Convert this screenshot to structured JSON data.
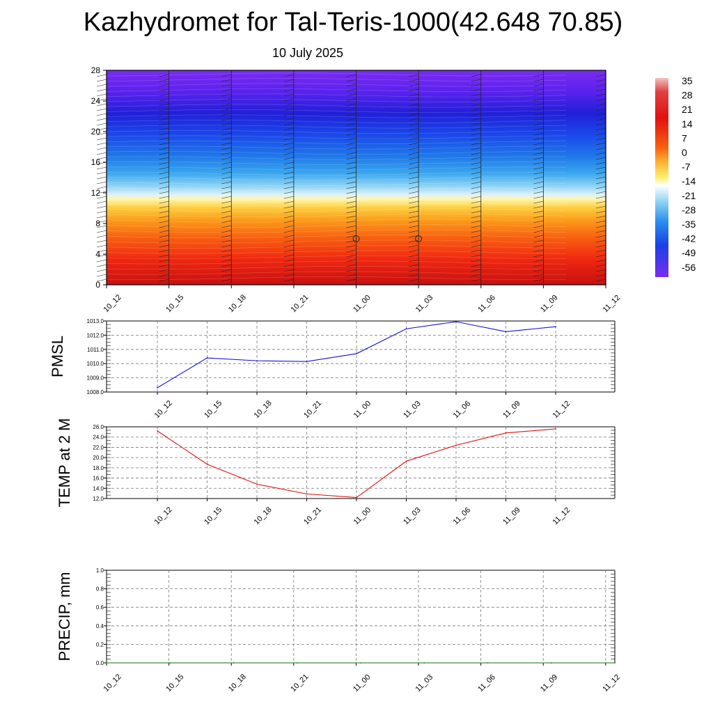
{
  "title": "Kazhydromet for Tal-Teris-1000(42.648 70.85)",
  "subtitle": "10 July 2025",
  "colors": {
    "pmsl_line": "#1010e0",
    "temp_line": "#e01010",
    "precip_line": "#1a6a1a",
    "grid": "#777777"
  },
  "chart_data": [
    {
      "type": "heatmap",
      "name": "cross-section",
      "x_ticks": [
        "10_12",
        "10_15",
        "10_18",
        "10_21",
        "11_00",
        "11_03",
        "11_06",
        "11_09",
        "11_12"
      ],
      "y_ticks": [
        "0",
        "4",
        "8",
        "12",
        "16",
        "20",
        "24",
        "28"
      ],
      "ylim": [
        0,
        28
      ],
      "colorbar": {
        "labels": [
          "35",
          "28",
          "21",
          "14",
          "7",
          "0",
          "-7",
          "-14",
          "-21",
          "-28",
          "-35",
          "-42",
          "-49",
          "-56"
        ],
        "range": [
          -60,
          38
        ]
      },
      "calm_markers": [
        {
          "x": "11_00",
          "y": 6
        },
        {
          "x": "11_03",
          "y": 6
        }
      ]
    },
    {
      "type": "line",
      "name": "pmsl",
      "ylabel": "PMSL",
      "y_ticks": [
        "1008.0",
        "1009.0",
        "1010.0",
        "1011.0",
        "1012.0",
        "1013.0"
      ],
      "ylim": [
        1008.0,
        1013.0
      ],
      "categories": [
        "10_12",
        "10_15",
        "10_18",
        "10_21",
        "11_00",
        "11_03",
        "11_06",
        "11_09",
        "11_12"
      ],
      "series": [
        {
          "values": [
            1008.3,
            1010.4,
            1010.2,
            1010.15,
            1010.7,
            1012.45,
            1012.95,
            1012.25,
            1012.6
          ]
        }
      ]
    },
    {
      "type": "line",
      "name": "temp",
      "ylabel": "TEMP at 2 M",
      "y_ticks": [
        "12.0",
        "14.0",
        "16.0",
        "18.0",
        "20.0",
        "22.0",
        "24.0",
        "26.0"
      ],
      "ylim": [
        12.0,
        26.0
      ],
      "categories": [
        "10_12",
        "10_15",
        "10_18",
        "10_21",
        "11_00",
        "11_03",
        "11_06",
        "11_09",
        "11_12"
      ],
      "series": [
        {
          "values": [
            25.2,
            18.7,
            14.8,
            12.9,
            12.2,
            19.3,
            22.4,
            24.8,
            25.6
          ]
        }
      ]
    },
    {
      "type": "line",
      "name": "precip",
      "ylabel": "PRECIP, mm",
      "y_ticks": [
        "0.0",
        "0.2",
        "0.4",
        "0.6",
        "0.8",
        "1.0"
      ],
      "ylim": [
        0.0,
        1.0
      ],
      "x_ticks": [
        "10_12",
        "10_15",
        "10_18",
        "10_21",
        "11_00",
        "11_03",
        "11_06",
        "11_09",
        "11_12"
      ],
      "series": [
        {
          "values": [
            0,
            0,
            0,
            0,
            0,
            0,
            0,
            0,
            0
          ]
        }
      ]
    }
  ]
}
